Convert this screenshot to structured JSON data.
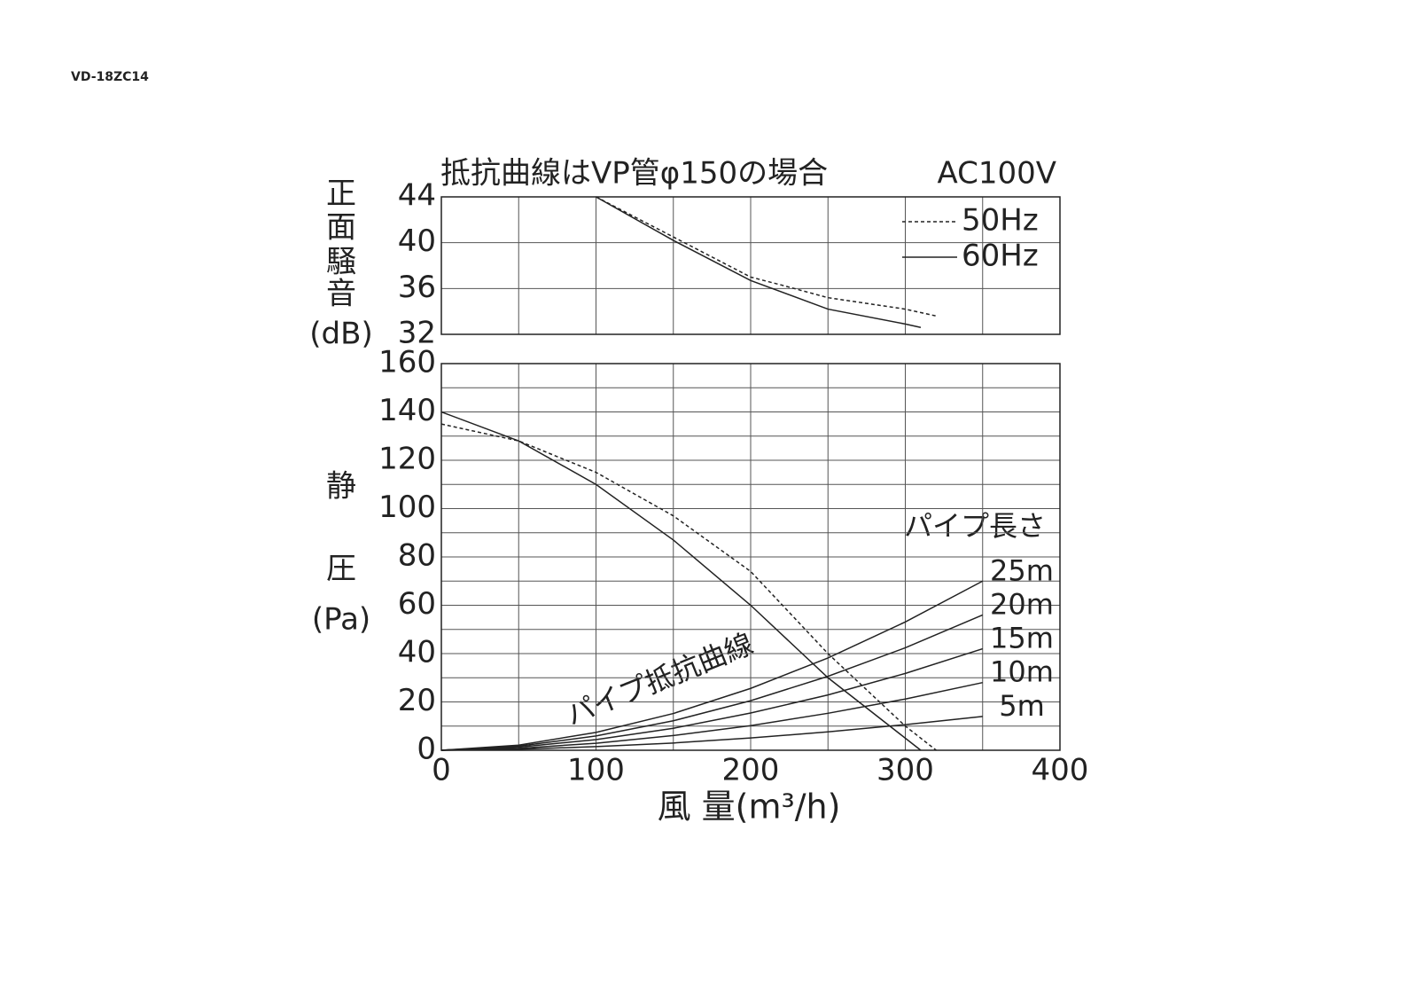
{
  "header": "VD-18ZC14",
  "chart_data": [
    {
      "type": "line",
      "title": "抵抗曲線はVP管φ150の場合",
      "subtitle": "AC100V",
      "ylabel": [
        "正",
        "面",
        "騒",
        "音",
        "(dB)"
      ],
      "xlim": [
        0,
        400
      ],
      "xgrid": [
        0,
        50,
        100,
        150,
        200,
        250,
        300,
        350,
        400
      ],
      "ylim": [
        32,
        44
      ],
      "yticks": [
        32,
        36,
        40,
        44
      ],
      "grid": true,
      "series": [
        {
          "name": "50Hz",
          "color": "#222222",
          "style": "dashed",
          "legend": true,
          "x": [
            100,
            150,
            200,
            220,
            250,
            300,
            320
          ],
          "values": [
            44,
            40.5,
            37.0,
            36.3,
            35.2,
            34.2,
            33.6
          ]
        },
        {
          "name": "60Hz",
          "color": "#222222",
          "style": "solid",
          "legend": true,
          "x": [
            100,
            150,
            200,
            250,
            300,
            310
          ],
          "values": [
            44,
            40.2,
            36.7,
            34.2,
            32.9,
            32.6
          ]
        }
      ]
    },
    {
      "type": "line",
      "ylabel": [
        "静",
        "圧",
        "(Pa)"
      ],
      "xlabel": "風 量(m³/h)",
      "xlim": [
        0,
        400
      ],
      "xticks": [
        0,
        100,
        200,
        300,
        400
      ],
      "xgrid": [
        0,
        50,
        100,
        150,
        200,
        250,
        300,
        350,
        400
      ],
      "ylim": [
        0,
        160
      ],
      "yticks": [
        0,
        20,
        40,
        60,
        80,
        100,
        120,
        140,
        160
      ],
      "ygrid": [
        0,
        10,
        20,
        30,
        40,
        50,
        60,
        70,
        80,
        90,
        100,
        110,
        120,
        130,
        140,
        150,
        160
      ],
      "grid": true,
      "annotations": [
        "パイプ長さ",
        "パイプ抵抗曲線"
      ],
      "series": [
        {
          "name": "50Hz",
          "color": "#222222",
          "style": "dashed",
          "legend": false,
          "x": [
            0,
            50,
            100,
            150,
            200,
            250,
            300,
            320
          ],
          "values": [
            135,
            128,
            115,
            97,
            74,
            40,
            10,
            0
          ]
        },
        {
          "name": "60Hz",
          "color": "#222222",
          "style": "solid",
          "legend": false,
          "x": [
            0,
            50,
            100,
            150,
            200,
            250,
            300,
            310
          ],
          "values": [
            140,
            128,
            110,
            87,
            60,
            30,
            5,
            0
          ]
        },
        {
          "name": "25m",
          "color": "#222222",
          "style": "solid",
          "end_label": true,
          "x": [
            0,
            50,
            100,
            150,
            200,
            250,
            300,
            350
          ],
          "values": [
            0,
            2.1,
            7.4,
            15.2,
            25.6,
            38.2,
            53.1,
            70
          ]
        },
        {
          "name": "20m",
          "color": "#222222",
          "style": "solid",
          "end_label": true,
          "x": [
            0,
            50,
            100,
            150,
            200,
            250,
            300,
            350
          ],
          "values": [
            0,
            1.7,
            5.9,
            12.2,
            20.5,
            30.6,
            42.4,
            56
          ]
        },
        {
          "name": "15m",
          "color": "#222222",
          "style": "solid",
          "end_label": true,
          "x": [
            0,
            50,
            100,
            150,
            200,
            250,
            300,
            350
          ],
          "values": [
            0,
            1.3,
            4.4,
            9.1,
            15.4,
            22.9,
            31.8,
            42
          ]
        },
        {
          "name": "10m",
          "color": "#222222",
          "style": "solid",
          "end_label": true,
          "x": [
            0,
            50,
            100,
            150,
            200,
            250,
            300,
            350
          ],
          "values": [
            0,
            0.8,
            2.9,
            6.1,
            10.2,
            15.3,
            21.2,
            28
          ]
        },
        {
          "name": "5m",
          "color": "#222222",
          "style": "solid",
          "end_label": true,
          "x": [
            0,
            50,
            100,
            150,
            200,
            250,
            300,
            350
          ],
          "values": [
            0,
            0.4,
            1.5,
            3.0,
            5.1,
            7.6,
            10.6,
            14
          ]
        }
      ]
    }
  ]
}
